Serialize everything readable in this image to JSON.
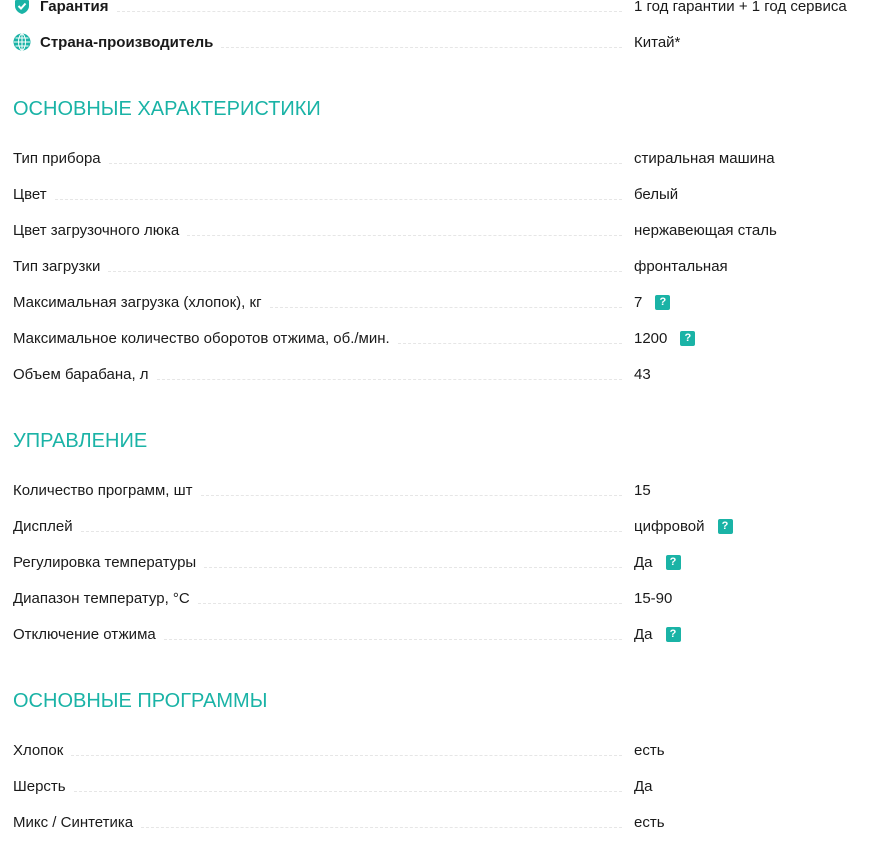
{
  "top": [
    {
      "label": "Гарантия",
      "value": "1 год гарантии + 1 год сервиса",
      "icon": "shield-check-icon"
    },
    {
      "label": "Страна-производитель",
      "value": "Китай*",
      "icon": "globe-icon"
    }
  ],
  "accent": "#1ab3a6",
  "sections": [
    {
      "title": "ОСНОВНЫЕ ХАРАКТЕРИСТИКИ",
      "rows": [
        {
          "label": "Тип прибора",
          "value": "стиральная машина"
        },
        {
          "label": "Цвет",
          "value": "белый"
        },
        {
          "label": "Цвет загрузочного люка",
          "value": "нержавеющая сталь"
        },
        {
          "label": "Тип загрузки",
          "value": "фронтальная"
        },
        {
          "label": "Максимальная загрузка (хлопок), кг",
          "value": "7",
          "help": "?"
        },
        {
          "label": "Максимальное количество оборотов отжима, об./мин.",
          "value": "1200",
          "help": "?"
        },
        {
          "label": "Объем барабана, л",
          "value": "43"
        }
      ]
    },
    {
      "title": "УПРАВЛЕНИЕ",
      "rows": [
        {
          "label": "Количество программ, шт",
          "value": "15"
        },
        {
          "label": "Дисплей",
          "value": "цифровой",
          "help": "?"
        },
        {
          "label": "Регулировка температуры",
          "value": "Да",
          "help": "?"
        },
        {
          "label": "Диапазон температур, °C",
          "value": "15-90"
        },
        {
          "label": "Отключение отжима",
          "value": "Да",
          "help": "?"
        }
      ]
    },
    {
      "title": "ОСНОВНЫЕ ПРОГРАММЫ",
      "rows": [
        {
          "label": "Хлопок",
          "value": "есть"
        },
        {
          "label": "Шерсть",
          "value": "Да"
        },
        {
          "label": "Микс / Синтетика",
          "value": "есть"
        }
      ]
    }
  ]
}
